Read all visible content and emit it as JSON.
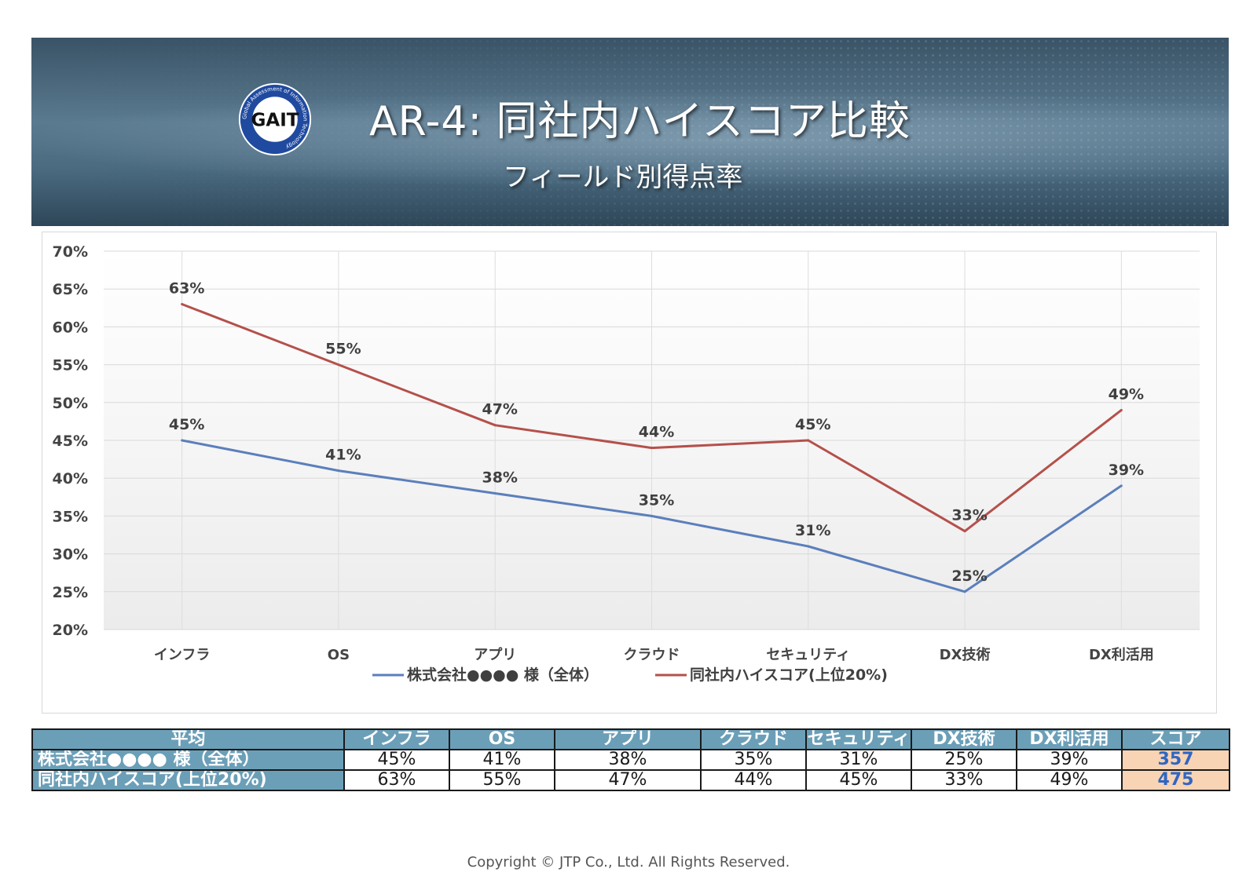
{
  "header": {
    "logo_text": "GAIT",
    "logo_ring_text": "Global Assessment of Information Technology",
    "title": "AR-4: 同社内ハイスコア比較",
    "subtitle": "フィールド別得点率"
  },
  "chart_data": {
    "type": "line",
    "categories": [
      "インフラ",
      "OS",
      "アプリ",
      "クラウド",
      "セキュリティ",
      "DX技術",
      "DX利活用"
    ],
    "series": [
      {
        "name": "株式会社●●●● 様（全体）",
        "values": [
          45,
          41,
          38,
          35,
          31,
          25,
          39
        ],
        "labels": [
          "45%",
          "41%",
          "38%",
          "35%",
          "31%",
          "25%",
          "39%"
        ],
        "color": "#5b7fbc"
      },
      {
        "name": "同社内ハイスコア(上位20%)",
        "values": [
          63,
          55,
          47,
          44,
          45,
          33,
          49
        ],
        "labels": [
          "63%",
          "55%",
          "47%",
          "44%",
          "45%",
          "33%",
          "49%"
        ],
        "color": "#b5504b"
      }
    ],
    "ylim": [
      20,
      70
    ],
    "yticks": [
      20,
      25,
      30,
      35,
      40,
      45,
      50,
      55,
      60,
      65,
      70
    ],
    "ytick_labels": [
      "20%",
      "25%",
      "30%",
      "35%",
      "40%",
      "45%",
      "50%",
      "55%",
      "60%",
      "65%",
      "70%"
    ],
    "title": "",
    "xlabel": "",
    "ylabel": "",
    "grid": true,
    "legend": "bottom"
  },
  "table": {
    "headers": [
      "平均",
      "インフラ",
      "OS",
      "アプリ",
      "クラウド",
      "セキュリティ",
      "DX技術",
      "DX利活用",
      "スコア"
    ],
    "rows": [
      {
        "label": "株式会社●●●● 様（全体）",
        "values": [
          "45%",
          "41%",
          "38%",
          "35%",
          "31%",
          "25%",
          "39%"
        ],
        "score": "357"
      },
      {
        "label": "同社内ハイスコア(上位20%)",
        "values": [
          "63%",
          "55%",
          "47%",
          "44%",
          "45%",
          "33%",
          "49%"
        ],
        "score": "475"
      }
    ]
  },
  "footer": {
    "copyright": "Copyright © JTP Co., Ltd. All Rights Reserved."
  },
  "colors": {
    "banner": "#4a6a80",
    "table_header": "#6b9fb8",
    "score_bg": "#f8d3b4",
    "score_text": "#2f66c2"
  }
}
